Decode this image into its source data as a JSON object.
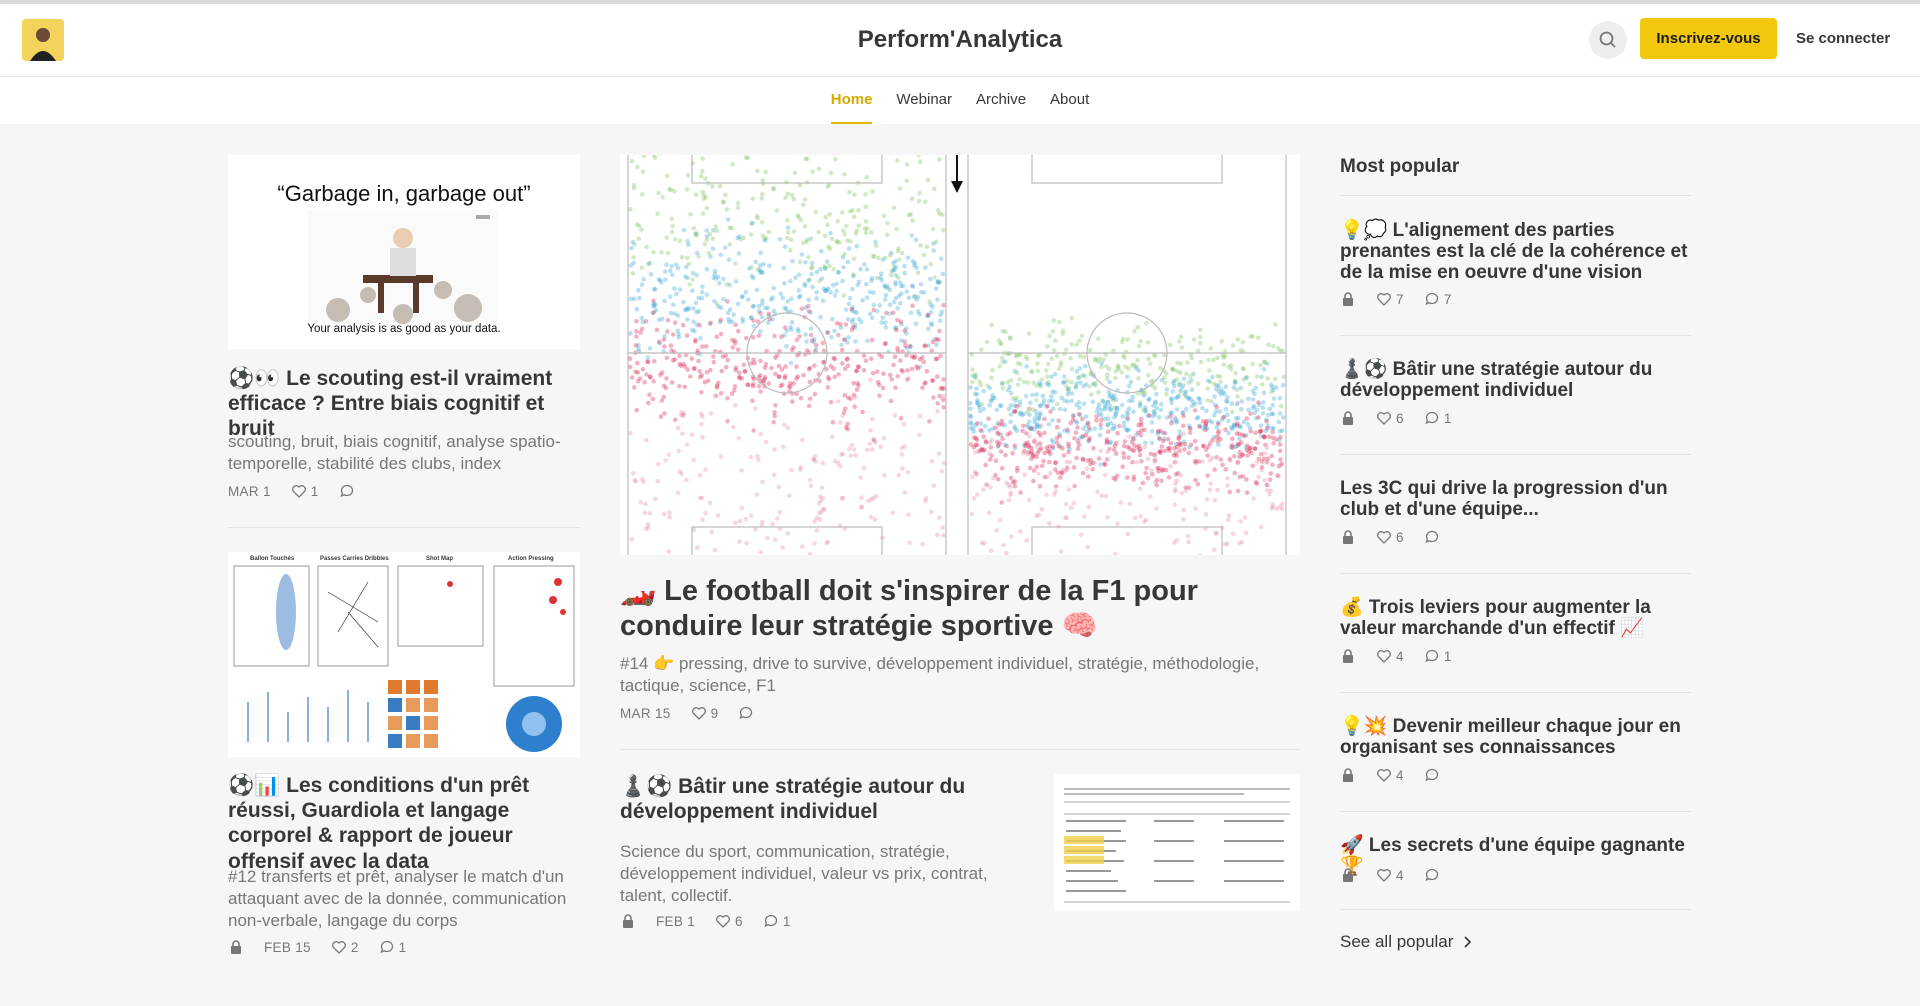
{
  "header": {
    "title": "Perform'Analytica",
    "signup": "Inscrivez-vous",
    "login": "Se connecter"
  },
  "nav": [
    "Home",
    "Webinar",
    "Archive",
    "About"
  ],
  "posts": [
    {
      "image_text": [
        "“Garbage in, garbage out”",
        "Your analysis is as good as your data."
      ],
      "title": "⚽👀 Le scouting est-il vraiment efficace ? Entre biais cognitif et bruit",
      "tags": "scouting, bruit, biais cognitif, analyse spatio-temporelle, stabilité des clubs, index",
      "date": "MAR 1",
      "likes": 1,
      "locked": false
    },
    {
      "image_text": [
        "Ballon Touchés",
        "Passes Carries Dribbles",
        "Shot Map",
        "Action Pressing"
      ],
      "title": "⚽📊 Les conditions d'un prêt réussi, Guardiola et langage corporel & rapport de joueur offensif avec la data",
      "tags": "#12 transferts et prêt, analyser le match d'un attaquant avec de la donnée, communication non-verbale, langage du corps",
      "date": "FEB 15",
      "likes": 2,
      "comments": 1,
      "locked": true
    },
    {
      "title": "🏎️ Le football doit s'inspirer de la F1 pour conduire leur stratégie sportive 🧠",
      "tags": "#14 👉 pressing, drive to survive, développement individuel, stratégie, méthodologie, tactique, science, F1",
      "date": "MAR 15",
      "likes": 9,
      "locked": false
    },
    {
      "title": "♟️⚽ Bâtir une stratégie autour du développement individuel",
      "tags": "Science du sport, communication, stratégie, développement individuel, valeur vs prix, contrat, talent, collectif.",
      "date": "FEB 1",
      "likes": 6,
      "comments": 1,
      "locked": true
    }
  ],
  "popular": {
    "title": "Most popular",
    "items": [
      {
        "title": "💡💭 L'alignement des parties prenantes est la clé de la cohérence et de la mise en oeuvre d'une vision",
        "likes": 7,
        "comments": 7,
        "locked": true
      },
      {
        "title": "♟️⚽ Bâtir une stratégie autour du développement individuel",
        "likes": 6,
        "comments": 1,
        "locked": true
      },
      {
        "title": "Les 3C qui drive la progression d'un club et d'une équipe...",
        "likes": 6,
        "locked": true
      },
      {
        "title": "💰 Trois leviers pour augmenter la valeur marchande d'un effectif 📈",
        "likes": 4,
        "comments": 1,
        "locked": true
      },
      {
        "title": "💡💥 Devenir meilleur chaque jour en organisant ses connaissances",
        "likes": 4,
        "locked": true
      },
      {
        "title": "🚀 Les secrets d'une équipe gagnante 🏆",
        "likes": 4,
        "locked": true
      }
    ],
    "see_all": "See all popular"
  }
}
